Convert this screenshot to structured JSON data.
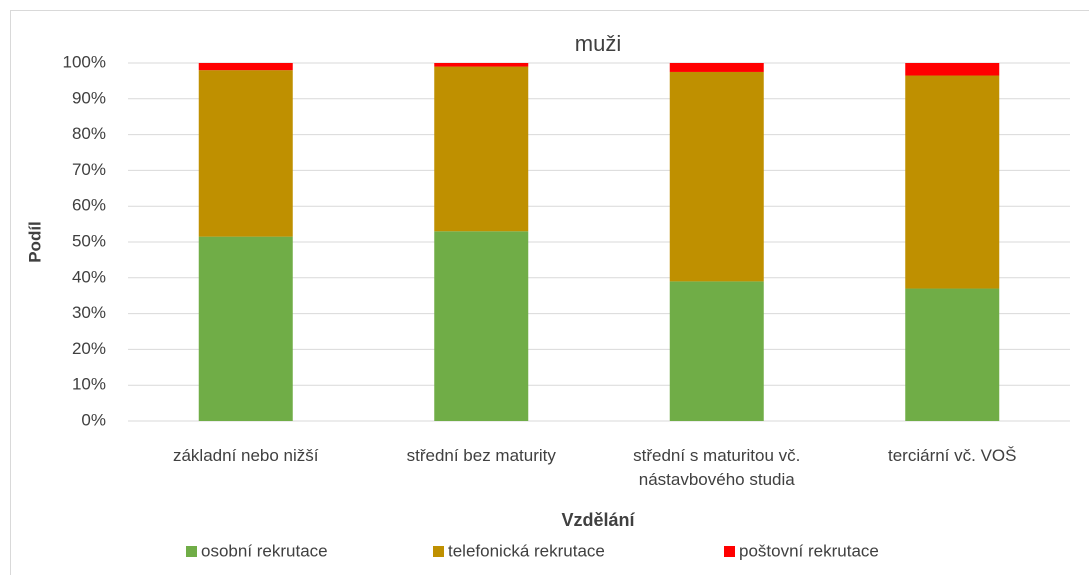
{
  "chart_data": {
    "type": "stacked_bar",
    "title": "muži",
    "x_label": "Vzdělání",
    "y_label": "Podíl",
    "categories": [
      "základní nebo nižší",
      "střední bez maturity",
      "střední s maturitou vč. nástavbového studia",
      "terciární vč. VOŠ"
    ],
    "series": [
      {
        "name": "osobní rekrutace",
        "color": "#70ad47",
        "values": [
          51.5,
          53,
          39,
          37
        ]
      },
      {
        "name": "telefonická rekrutace",
        "color": "#bf9000",
        "values": [
          46.5,
          46,
          58.5,
          59.5
        ]
      },
      {
        "name": "poštovní rekrutace",
        "color": "#ff0000",
        "values": [
          2,
          1,
          2.5,
          3.5
        ]
      }
    ],
    "ylim": [
      0,
      100
    ],
    "yticks": [
      {
        "value": 0,
        "label": "0%"
      },
      {
        "value": 10,
        "label": "10%"
      },
      {
        "value": 20,
        "label": "20%"
      },
      {
        "value": 30,
        "label": "30%"
      },
      {
        "value": 40,
        "label": "40%"
      },
      {
        "value": 50,
        "label": "50%"
      },
      {
        "value": 60,
        "label": "60%"
      },
      {
        "value": 70,
        "label": "70%"
      },
      {
        "value": 80,
        "label": "80%"
      },
      {
        "value": 90,
        "label": "90%"
      },
      {
        "value": 100,
        "label": "100%"
      }
    ],
    "grid": true,
    "legend": "bottom"
  }
}
